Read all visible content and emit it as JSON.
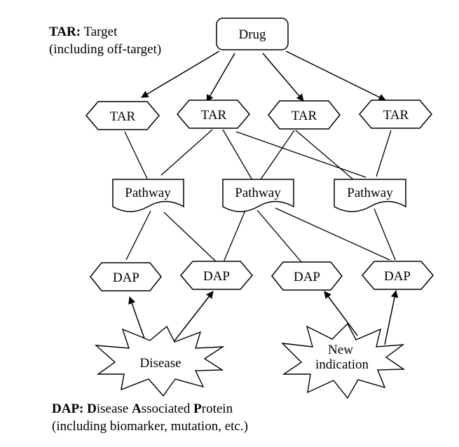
{
  "legend_top": {
    "term": "TAR:",
    "line1_rest": "Target",
    "line2": "(including off-target)"
  },
  "legend_bottom": {
    "term": "DAP:",
    "expansion": [
      {
        "bold": "D",
        "rest": "isease "
      },
      {
        "bold": "A",
        "rest": "ssociated "
      },
      {
        "bold": "P",
        "rest": "rotein"
      }
    ],
    "line2": "(including biomarker, mutation, etc.)"
  },
  "nodes": {
    "drug": "Drug",
    "targets": [
      "TAR",
      "TAR",
      "TAR",
      "TAR"
    ],
    "pathways": [
      "Pathway",
      "Pathway",
      "Pathway"
    ],
    "daps": [
      "DAP",
      "DAP",
      "DAP",
      "DAP"
    ],
    "disease": "Disease",
    "new_indication": [
      "New",
      "indication"
    ]
  },
  "colors": {
    "stroke": "#000000",
    "fill": "#ffffff",
    "text": "#000000"
  }
}
